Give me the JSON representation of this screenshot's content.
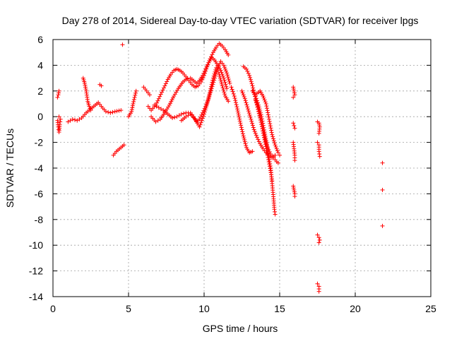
{
  "chart_data": {
    "type": "scatter",
    "title": "Day 278 of 2014, Sidereal Day-to-day VTEC variation (SDTVAR) for receiver lpgs",
    "xlabel": "GPS time / hours",
    "ylabel": "SDTVAR / TECUs",
    "xlim": [
      0,
      25
    ],
    "ylim": [
      -14,
      6
    ],
    "xticks": [
      0,
      5,
      10,
      15,
      20,
      25
    ],
    "yticks": [
      -14,
      -12,
      -10,
      -8,
      -6,
      -4,
      -2,
      0,
      2,
      4,
      6
    ],
    "xtick_labels": [
      "0",
      "5",
      "10",
      "15",
      "20",
      "25"
    ],
    "ytick_labels": [
      "-14",
      "-12",
      "-10",
      "-8",
      "-6",
      "-4",
      "-2",
      "0",
      "2",
      "4",
      "6"
    ],
    "grid": true,
    "marker": "+",
    "color": "#ff0000",
    "series": [
      {
        "name": "SDTVAR",
        "segments": [
          [
            [
              0.3,
              1.5
            ],
            [
              0.35,
              1.7
            ],
            [
              0.4,
              2.0
            ]
          ],
          [
            [
              0.3,
              -0.3
            ],
            [
              0.35,
              -0.8
            ],
            [
              0.4,
              -1.2
            ],
            [
              0.45,
              -0.6
            ],
            [
              0.5,
              -0.2
            ],
            [
              0.4,
              0.0
            ]
          ],
          [
            [
              1.0,
              -0.4
            ],
            [
              1.3,
              -0.2
            ],
            [
              1.6,
              -0.3
            ],
            [
              1.9,
              -0.1
            ],
            [
              2.2,
              0.3
            ],
            [
              2.5,
              0.6
            ],
            [
              2.8,
              0.9
            ],
            [
              3.0,
              1.1
            ],
            [
              3.2,
              0.8
            ],
            [
              3.5,
              0.4
            ],
            [
              3.8,
              0.3
            ],
            [
              4.1,
              0.4
            ],
            [
              4.5,
              0.5
            ]
          ],
          [
            [
              2.0,
              3.0
            ],
            [
              2.1,
              2.6
            ],
            [
              2.2,
              2.0
            ],
            [
              2.3,
              1.2
            ],
            [
              2.4,
              0.8
            ],
            [
              2.5,
              0.5
            ]
          ],
          [
            [
              3.1,
              2.5
            ],
            [
              3.2,
              2.4
            ]
          ],
          [
            [
              4.0,
              -3.0
            ],
            [
              4.2,
              -2.7
            ],
            [
              4.4,
              -2.5
            ],
            [
              4.6,
              -2.3
            ],
            [
              4.7,
              -2.2
            ]
          ],
          [
            [
              5.0,
              0.0
            ],
            [
              5.2,
              0.4
            ],
            [
              5.3,
              1.0
            ],
            [
              5.4,
              1.5
            ],
            [
              5.5,
              2.0
            ]
          ],
          [
            [
              6.0,
              2.3
            ],
            [
              6.2,
              2.0
            ],
            [
              6.4,
              1.7
            ]
          ],
          [
            [
              6.3,
              0.8
            ],
            [
              6.5,
              0.5
            ],
            [
              6.8,
              0.9
            ],
            [
              7.0,
              1.4
            ],
            [
              7.2,
              1.9
            ],
            [
              7.4,
              2.4
            ],
            [
              7.6,
              2.9
            ],
            [
              7.8,
              3.3
            ],
            [
              8.0,
              3.6
            ],
            [
              8.2,
              3.7
            ],
            [
              8.4,
              3.6
            ],
            [
              8.6,
              3.4
            ],
            [
              8.8,
              3.1
            ],
            [
              9.0,
              2.8
            ],
            [
              9.2,
              2.5
            ],
            [
              9.4,
              2.3
            ],
            [
              9.6,
              2.4
            ],
            [
              9.8,
              2.7
            ],
            [
              10.0,
              3.2
            ],
            [
              10.2,
              3.9
            ],
            [
              10.4,
              4.5
            ],
            [
              10.6,
              5.0
            ],
            [
              10.8,
              5.4
            ],
            [
              11.0,
              5.7
            ],
            [
              11.2,
              5.5
            ],
            [
              11.4,
              5.2
            ],
            [
              11.6,
              4.8
            ]
          ],
          [
            [
              6.5,
              0.0
            ],
            [
              6.8,
              -0.4
            ],
            [
              7.1,
              -0.2
            ],
            [
              7.4,
              0.3
            ],
            [
              7.7,
              0.9
            ],
            [
              8.0,
              1.6
            ],
            [
              8.3,
              2.2
            ],
            [
              8.6,
              2.7
            ],
            [
              8.9,
              3.0
            ],
            [
              9.1,
              3.0
            ],
            [
              9.3,
              2.8
            ],
            [
              9.5,
              2.6
            ],
            [
              9.7,
              2.8
            ],
            [
              9.9,
              3.2
            ],
            [
              10.1,
              3.7
            ],
            [
              10.3,
              4.2
            ],
            [
              10.5,
              4.6
            ],
            [
              10.7,
              4.4
            ],
            [
              10.9,
              4.0
            ],
            [
              11.1,
              3.6
            ],
            [
              11.3,
              3.0
            ],
            [
              11.5,
              2.2
            ]
          ],
          [
            [
              6.7,
              0.9
            ],
            [
              7.0,
              0.7
            ],
            [
              7.3,
              0.5
            ],
            [
              7.6,
              0.2
            ],
            [
              7.9,
              -0.1
            ],
            [
              8.2,
              0.0
            ],
            [
              8.5,
              0.2
            ],
            [
              8.8,
              0.3
            ],
            [
              9.1,
              0.3
            ],
            [
              9.3,
              0.0
            ],
            [
              9.5,
              -0.4
            ],
            [
              9.7,
              -0.2
            ],
            [
              9.9,
              0.3
            ],
            [
              10.1,
              0.8
            ],
            [
              10.3,
              1.4
            ],
            [
              10.5,
              2.2
            ],
            [
              10.7,
              3.0
            ],
            [
              10.9,
              3.8
            ],
            [
              11.1,
              4.3
            ],
            [
              11.3,
              4.0
            ],
            [
              11.5,
              3.4
            ],
            [
              11.7,
              2.6
            ]
          ],
          [
            [
              8.5,
              -0.3
            ],
            [
              8.8,
              0.0
            ],
            [
              9.1,
              0.2
            ],
            [
              9.4,
              -0.2
            ],
            [
              9.7,
              -0.8
            ],
            [
              10.0,
              0.2
            ],
            [
              10.2,
              1.0
            ],
            [
              10.4,
              2.0
            ],
            [
              10.6,
              3.0
            ],
            [
              10.8,
              3.8
            ],
            [
              11.0,
              3.3
            ],
            [
              11.2,
              2.4
            ],
            [
              11.4,
              1.6
            ],
            [
              11.6,
              1.2
            ]
          ],
          [
            [
              11.8,
              2.3
            ],
            [
              12.0,
              1.6
            ],
            [
              12.2,
              0.6
            ],
            [
              12.4,
              -0.5
            ],
            [
              12.6,
              -1.5
            ],
            [
              12.8,
              -2.4
            ],
            [
              13.0,
              -2.8
            ],
            [
              13.2,
              -2.7
            ]
          ],
          [
            [
              12.6,
              3.9
            ],
            [
              12.8,
              3.7
            ],
            [
              13.0,
              3.2
            ],
            [
              13.2,
              2.4
            ],
            [
              13.4,
              1.4
            ],
            [
              13.6,
              0.4
            ],
            [
              13.8,
              -0.6
            ],
            [
              14.0,
              -1.6
            ],
            [
              14.2,
              -2.4
            ],
            [
              14.4,
              -2.9
            ],
            [
              14.6,
              -3.2
            ],
            [
              14.8,
              -3.5
            ],
            [
              14.9,
              -3.6
            ]
          ],
          [
            [
              12.5,
              2.0
            ],
            [
              12.7,
              1.4
            ],
            [
              12.9,
              0.6
            ],
            [
              13.1,
              -0.2
            ],
            [
              13.3,
              -1.0
            ],
            [
              13.5,
              -1.6
            ],
            [
              13.7,
              -2.1
            ],
            [
              13.9,
              -2.5
            ],
            [
              14.1,
              -2.8
            ],
            [
              14.3,
              -3.0
            ],
            [
              14.5,
              -3.2
            ],
            [
              14.7,
              -3.0
            ]
          ],
          [
            [
              13.2,
              2.0
            ],
            [
              13.4,
              1.6
            ],
            [
              13.6,
              0.9
            ],
            [
              13.8,
              0.0
            ],
            [
              14.0,
              -1.2
            ],
            [
              14.2,
              -2.5
            ],
            [
              14.4,
              -4.0
            ],
            [
              14.5,
              -5.2
            ],
            [
              14.6,
              -6.4
            ],
            [
              14.65,
              -7.2
            ],
            [
              14.7,
              -7.6
            ]
          ],
          [
            [
              13.4,
              1.3
            ],
            [
              13.6,
              0.6
            ],
            [
              13.8,
              -0.6
            ],
            [
              14.0,
              -1.8
            ],
            [
              14.2,
              -3.0
            ],
            [
              14.4,
              -4.2
            ],
            [
              14.5,
              -5.0
            ]
          ],
          [
            [
              13.5,
              1.8
            ],
            [
              13.7,
              2.0
            ],
            [
              13.9,
              1.6
            ],
            [
              14.1,
              1.0
            ],
            [
              14.3,
              -0.2
            ],
            [
              14.5,
              -1.4
            ],
            [
              14.7,
              -2.2
            ],
            [
              14.9,
              -2.8
            ],
            [
              15.0,
              -3.0
            ]
          ],
          [
            [
              15.9,
              2.3
            ],
            [
              15.95,
              2.0
            ],
            [
              16.0,
              1.7
            ],
            [
              15.9,
              1.5
            ]
          ],
          [
            [
              15.9,
              -0.5
            ],
            [
              15.95,
              -0.7
            ],
            [
              16.0,
              -0.9
            ]
          ],
          [
            [
              15.9,
              -2.0
            ],
            [
              15.95,
              -2.5
            ],
            [
              16.0,
              -3.0
            ],
            [
              16.0,
              -3.4
            ]
          ],
          [
            [
              15.9,
              -5.4
            ],
            [
              15.95,
              -5.7
            ],
            [
              16.0,
              -6.0
            ],
            [
              16.0,
              -6.2
            ]
          ],
          [
            [
              17.5,
              -0.4
            ],
            [
              17.6,
              -0.5
            ],
            [
              17.65,
              -0.8
            ],
            [
              17.6,
              -1.3
            ]
          ],
          [
            [
              17.5,
              -2.0
            ],
            [
              17.6,
              -2.2
            ],
            [
              17.6,
              -2.7
            ],
            [
              17.65,
              -3.1
            ]
          ],
          [
            [
              17.5,
              -9.2
            ],
            [
              17.6,
              -9.4
            ],
            [
              17.65,
              -9.6
            ],
            [
              17.6,
              -9.8
            ]
          ],
          [
            [
              17.5,
              -13.0
            ],
            [
              17.6,
              -13.2
            ],
            [
              17.6,
              -13.6
            ]
          ],
          [
            [
              21.8,
              -3.6
            ]
          ],
          [
            [
              21.8,
              -5.7
            ]
          ],
          [
            [
              21.8,
              -8.5
            ]
          ],
          [
            [
              4.6,
              5.6
            ]
          ]
        ]
      }
    ]
  }
}
